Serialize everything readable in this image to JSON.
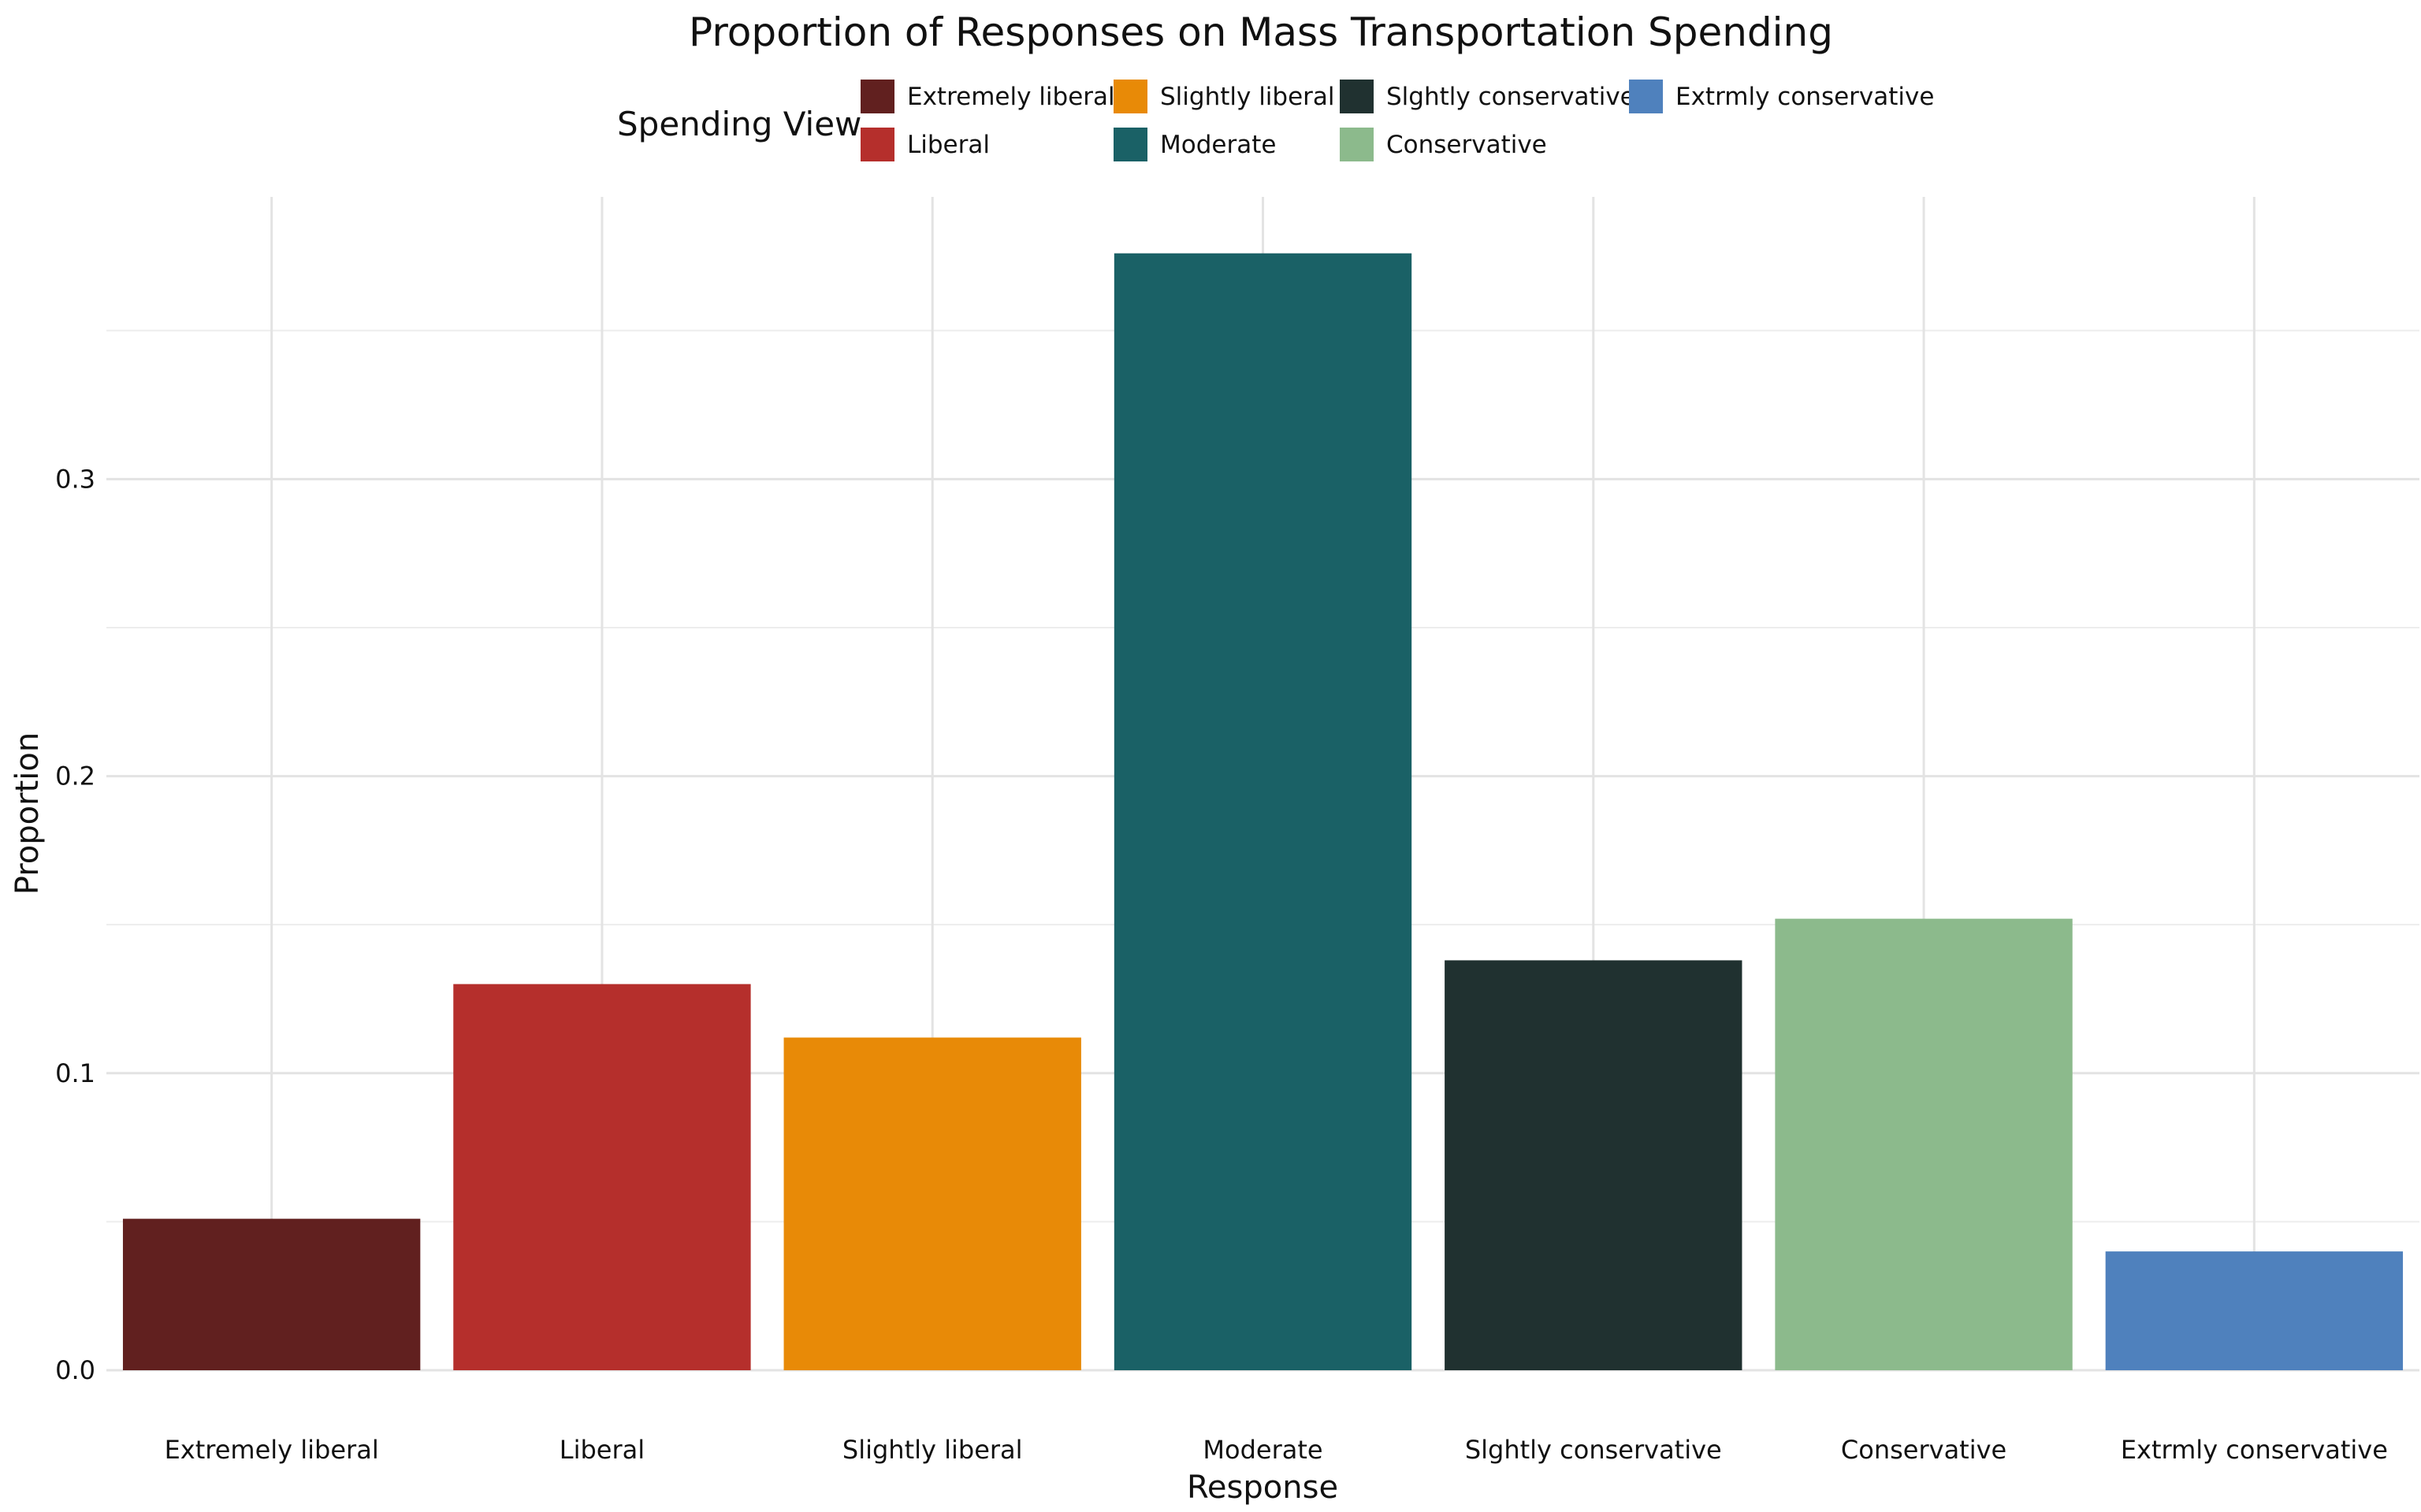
{
  "chart_data": {
    "type": "bar",
    "title": "Proportion of Responses on Mass Transportation Spending",
    "xlabel": "Response",
    "ylabel": "Proportion",
    "categories": [
      "Extremely liberal",
      "Liberal",
      "Slightly liberal",
      "Moderate",
      "Slghtly conservative",
      "Conservative",
      "Extrmly conservative"
    ],
    "values": [
      0.051,
      0.13,
      0.112,
      0.376,
      0.138,
      0.152,
      0.04
    ],
    "colors": [
      "#61201f",
      "#b52f2c",
      "#e88a07",
      "#1a6166",
      "#203130",
      "#8cba8c",
      "#4f81bd"
    ],
    "ylim": [
      0,
      0.395
    ],
    "yticks": [
      0.0,
      0.1,
      0.2,
      0.3
    ],
    "ytick_labels": [
      "0.0",
      "0.1",
      "0.2",
      "0.3"
    ],
    "grid": true,
    "legend": {
      "title": "Spending View",
      "placement": "top",
      "entries": [
        "Extremely liberal",
        "Liberal",
        "Slightly liberal",
        "Moderate",
        "Slghtly conservative",
        "Conservative",
        "Extrmly conservative"
      ]
    }
  }
}
